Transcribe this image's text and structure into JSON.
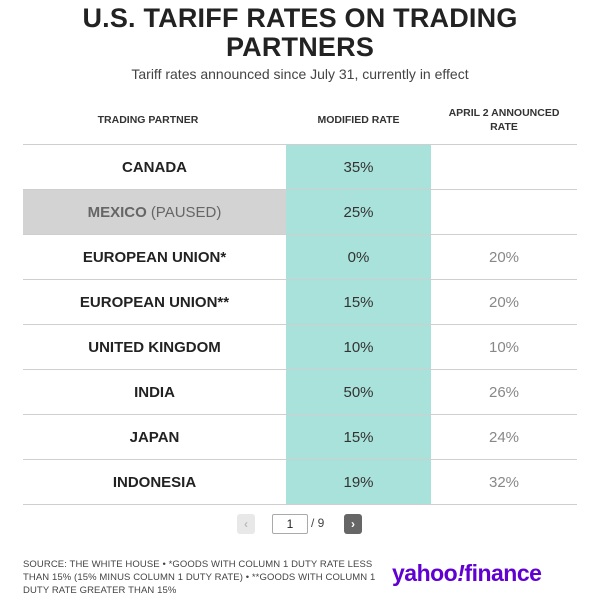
{
  "header": {
    "title_line1": "U.S. TARIFF RATES ON TRADING",
    "title_line2": "PARTNERS",
    "subtitle": "Tariff rates announced since July 31, currently in effect"
  },
  "chart_data": {
    "type": "table",
    "columns": [
      "TRADING PARTNER",
      "MODIFIED RATE",
      "APRIL 2 ANNOUNCED RATE"
    ],
    "columns_display": {
      "partner": "TRADING PARTNER",
      "modified": "MODIFIED RATE",
      "april_line1": "APRIL 2 ANNOUNCED",
      "april_line2": "RATE"
    },
    "rows": [
      {
        "partner": "CANADA",
        "note": "",
        "modified": "35%",
        "april": "",
        "highlighted": false
      },
      {
        "partner": "MEXICO",
        "note": "(PAUSED)",
        "modified": "25%",
        "april": "",
        "highlighted": true
      },
      {
        "partner": "EUROPEAN UNION*",
        "note": "",
        "modified": "0%",
        "april": "20%",
        "highlighted": false
      },
      {
        "partner": "EUROPEAN UNION**",
        "note": "",
        "modified": "15%",
        "april": "20%",
        "highlighted": false
      },
      {
        "partner": "UNITED KINGDOM",
        "note": "",
        "modified": "10%",
        "april": "10%",
        "highlighted": false
      },
      {
        "partner": "INDIA",
        "note": "",
        "modified": "50%",
        "april": "26%",
        "highlighted": false
      },
      {
        "partner": "JAPAN",
        "note": "",
        "modified": "15%",
        "april": "24%",
        "highlighted": false
      },
      {
        "partner": "INDONESIA",
        "note": "",
        "modified": "19%",
        "april": "32%",
        "highlighted": false
      }
    ],
    "colors": {
      "modified_column": "#a9e2da",
      "paused_row": "#d3d3d3"
    }
  },
  "pagination": {
    "current_page": "1",
    "total_label": "/ 9",
    "prev_icon": "chevron-left-icon",
    "next_icon": "chevron-right-icon"
  },
  "footer": {
    "source": "SOURCE: THE WHITE HOUSE • *GOODS WITH COLUMN 1 DUTY RATE LESS THAN 15% (15% MINUS COLUMN 1 DUTY RATE) • **GOODS WITH COLUMN 1 DUTY RATE GREATER THAN 15%",
    "logo_part1": "yahoo",
    "logo_part2": "!",
    "logo_part3": "finance",
    "brand_color": "#6001d2"
  }
}
